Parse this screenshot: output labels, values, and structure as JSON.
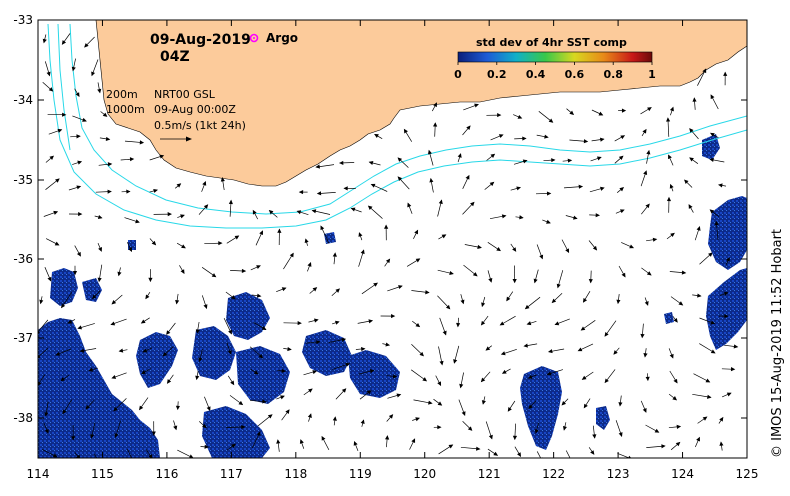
{
  "header": {
    "date": "09-Aug-2019",
    "time": "04Z",
    "argo_label": "Argo"
  },
  "legend": {
    "title": "std dev of 4hr SST comp",
    "ticks": [
      "0",
      "0.2",
      "0.4",
      "0.6",
      "0.8",
      "1"
    ],
    "colors": [
      "#0a1f7a",
      "#1e5bd6",
      "#11b0c8",
      "#38c84a",
      "#d8d820",
      "#e88a18",
      "#c81818",
      "#6a0a0a"
    ]
  },
  "info": {
    "contour_200": "200m",
    "contour_1000": "1000m",
    "product": "NRT00 GSL",
    "valid_time": "09-Aug 00:00Z",
    "scale_label": "0.5m/s (1kt 24h)"
  },
  "axes": {
    "x_ticks": [
      "114",
      "115",
      "116",
      "117",
      "118",
      "119",
      "120",
      "121",
      "122",
      "123",
      "124",
      "125"
    ],
    "y_ticks": [
      "-33",
      "-34",
      "-35",
      "-36",
      "-37",
      "-38"
    ]
  },
  "credit": "© IMOS 15-Aug-2019 11:52 Hobart",
  "colors": {
    "land": "#fccb9b",
    "sst_patch": "#0c2a8a",
    "isobath": "#28d8e8",
    "argo": "#ff00ff"
  }
}
